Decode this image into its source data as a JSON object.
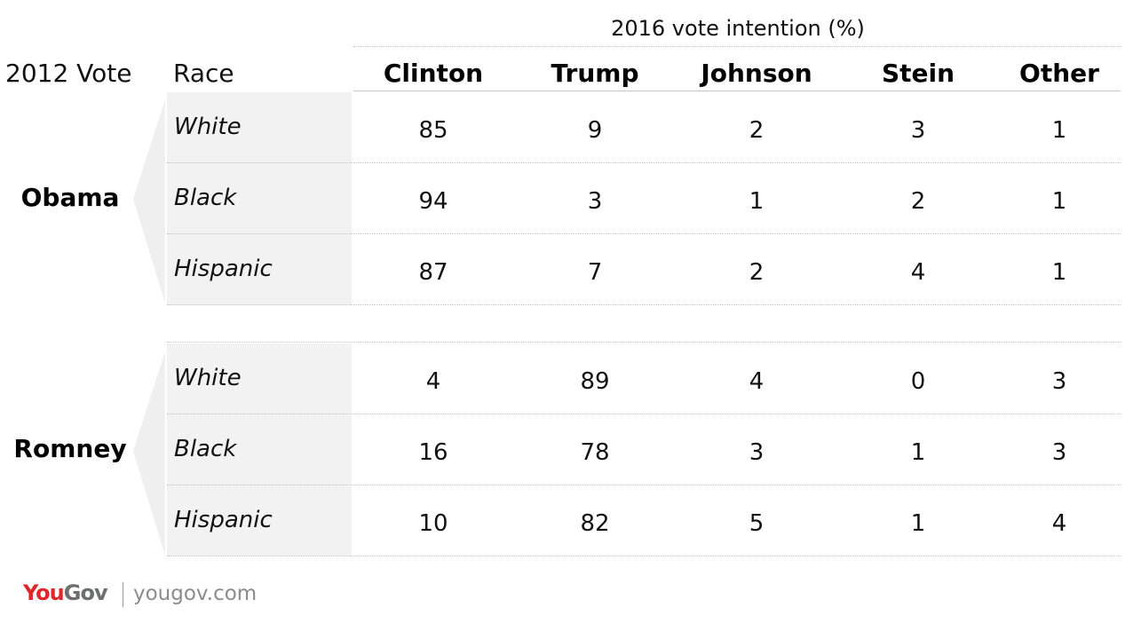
{
  "super_header": "2016 vote intention (%)",
  "header": {
    "vote_2012": "2012 Vote",
    "race": "Race"
  },
  "chart_data": {
    "type": "table",
    "title": "2016 vote intention (%)",
    "columns": [
      "Clinton",
      "Trump",
      "Johnson",
      "Stein",
      "Other"
    ],
    "groups": [
      {
        "label": "Obama",
        "rows": [
          {
            "race": "White",
            "values": [
              85,
              9,
              2,
              3,
              1
            ]
          },
          {
            "race": "Black",
            "values": [
              94,
              3,
              1,
              2,
              1
            ]
          },
          {
            "race": "Hispanic",
            "values": [
              87,
              7,
              2,
              4,
              1
            ]
          }
        ]
      },
      {
        "label": "Romney",
        "rows": [
          {
            "race": "White",
            "values": [
              4,
              89,
              4,
              0,
              3
            ]
          },
          {
            "race": "Black",
            "values": [
              16,
              78,
              3,
              1,
              3
            ]
          },
          {
            "race": "Hispanic",
            "values": [
              10,
              82,
              5,
              1,
              4
            ]
          }
        ]
      }
    ]
  },
  "footer": {
    "logo_you": "You",
    "logo_gov": "Gov",
    "url": "yougov.com"
  },
  "colors": {
    "brand_red": "#e0262b",
    "brand_gray": "#6d6e70",
    "row_fill": "#f2f2f2",
    "bracket_fill": "#efefef"
  }
}
